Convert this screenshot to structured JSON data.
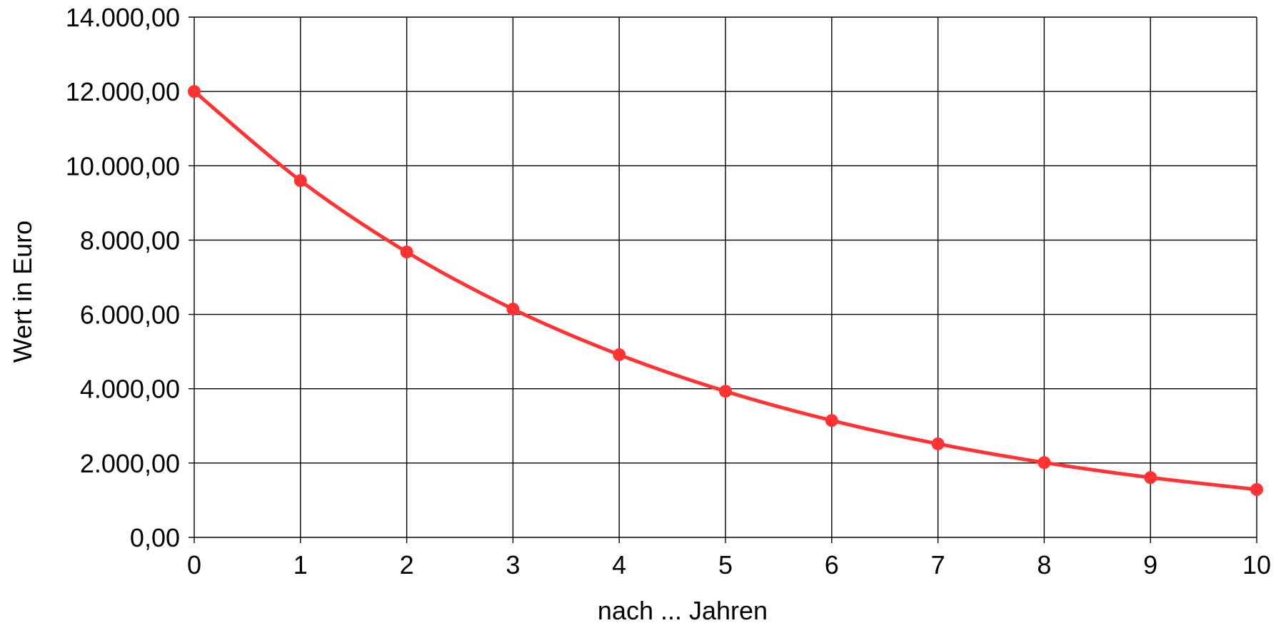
{
  "chart_data": {
    "type": "line",
    "title": "",
    "xlabel": "nach ... Jahren",
    "ylabel": "Wert in Euro",
    "x": [
      0,
      1,
      2,
      3,
      4,
      5,
      6,
      7,
      8,
      9,
      10
    ],
    "x_tick_labels": [
      "0",
      "1",
      "2",
      "3",
      "4",
      "5",
      "6",
      "7",
      "8",
      "9",
      "10"
    ],
    "y_ticks": [
      0,
      2000,
      4000,
      6000,
      8000,
      10000,
      12000,
      14000
    ],
    "y_tick_labels": [
      "0,00",
      "2.000,00",
      "4.000,00",
      "6.000,00",
      "8.000,00",
      "10.000,00",
      "12.000,00",
      "14.000,00"
    ],
    "xlim": [
      0,
      10
    ],
    "ylim": [
      0,
      14000
    ],
    "grid": true,
    "legend": "none",
    "series": [
      {
        "color": "#ff3333",
        "marker": "circle",
        "smooth": true,
        "values": [
          12000,
          9600,
          7680,
          6144,
          4915.2,
          3932.16,
          3145.73,
          2516.58,
          2013.27,
          1610.61,
          1288.49
        ]
      }
    ]
  }
}
